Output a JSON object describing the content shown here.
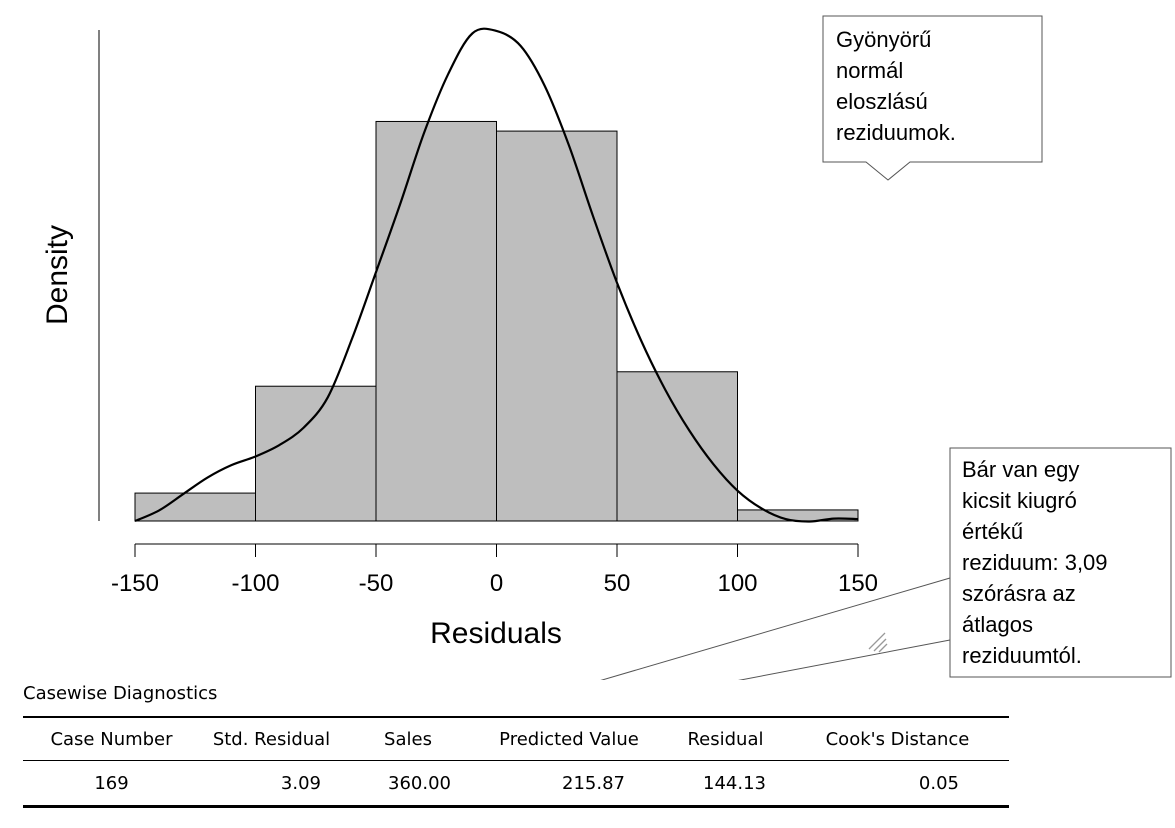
{
  "chart_data": {
    "type": "histogram",
    "xlabel": "Residuals",
    "ylabel": "Density",
    "xlim": [
      -150,
      150
    ],
    "x_ticks": [
      -150,
      -100,
      -50,
      0,
      50,
      100,
      150
    ],
    "tick_labels": [
      "-150",
      "-100",
      "-50",
      "0",
      "50",
      "100",
      "150"
    ],
    "y_axis_ticks_shown": false,
    "bins": [
      {
        "from": -150,
        "to": -100,
        "density": 0.00058
      },
      {
        "from": -100,
        "to": -50,
        "density": 0.0028
      },
      {
        "from": -50,
        "to": 0,
        "density": 0.0083
      },
      {
        "from": 0,
        "to": 50,
        "density": 0.0081
      },
      {
        "from": 50,
        "to": 100,
        "density": 0.0031
      },
      {
        "from": 100,
        "to": 150,
        "density": 0.00023
      }
    ],
    "density_curve": {
      "x": [
        -150,
        -140,
        -130,
        -120,
        -110,
        -100,
        -90,
        -80,
        -70,
        -60,
        -50,
        -40,
        -30,
        -20,
        -10,
        0,
        10,
        20,
        30,
        40,
        50,
        60,
        70,
        80,
        90,
        100,
        110,
        120,
        130,
        140,
        150
      ],
      "y": [
        0.0,
        0.00022,
        0.00056,
        0.0009,
        0.00116,
        0.00134,
        0.00158,
        0.00194,
        0.00257,
        0.00378,
        0.00517,
        0.00658,
        0.00807,
        0.00929,
        0.01013,
        0.01018,
        0.00987,
        0.00904,
        0.00781,
        0.00634,
        0.00495,
        0.00375,
        0.00273,
        0.00188,
        0.00118,
        0.00063,
        0.00026,
        4e-05,
        -1e-05,
        5e-05,
        4e-05
      ]
    },
    "ylim": [
      0,
      0.0102
    ]
  },
  "callouts": [
    {
      "lines": [
        "Gyönyörű",
        "normál",
        "eloszlású",
        "reziduumok."
      ]
    },
    {
      "lines": [
        "Bár van egy",
        "kicsit kiugró",
        "értékű",
        "reziduum: 3,09",
        "szórásra az",
        "átlagos",
        "reziduumtól."
      ]
    }
  ],
  "table": {
    "title": "Casewise Diagnostics",
    "columns": [
      "Case Number",
      "Std. Residual",
      "Sales",
      "Predicted Value",
      "Residual",
      "Cook's Distance"
    ],
    "rows": [
      [
        "169",
        "3.09",
        "360.00",
        "215.87",
        "144.13",
        "0.05"
      ]
    ]
  },
  "colors": {
    "bar_fill": "#bebebe",
    "bar_stroke": "#000000",
    "curve": "#000000",
    "callout_border": "#555555"
  }
}
